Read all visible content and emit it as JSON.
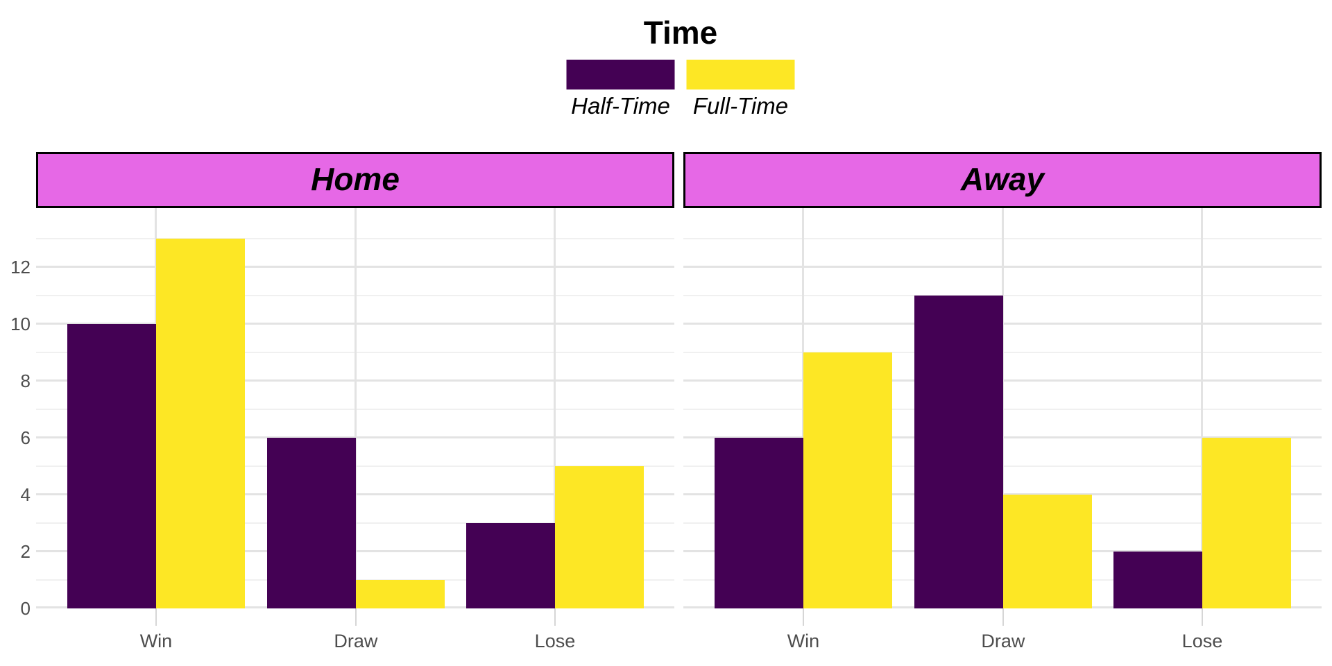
{
  "legend": {
    "title": "Time",
    "items": [
      {
        "label": "Half-Time",
        "color": "#440154"
      },
      {
        "label": "Full-Time",
        "color": "#FDE725"
      }
    ]
  },
  "chart_data": {
    "type": "bar",
    "layout": "two-facet dodged bar chart, legend top-center, shared y axis on left, grid on, no axis titles",
    "facets": [
      {
        "label": "Home",
        "categories": [
          "Win",
          "Draw",
          "Lose"
        ],
        "series": [
          {
            "name": "Half-Time",
            "values": [
              10,
              6,
              3
            ]
          },
          {
            "name": "Full-Time",
            "values": [
              13,
              1,
              5
            ]
          }
        ]
      },
      {
        "label": "Away",
        "categories": [
          "Win",
          "Draw",
          "Lose"
        ],
        "series": [
          {
            "name": "Half-Time",
            "values": [
              6,
              11,
              2
            ]
          },
          {
            "name": "Full-Time",
            "values": [
              9,
              4,
              6
            ]
          }
        ]
      }
    ],
    "y_ticks": [
      0,
      2,
      4,
      6,
      8,
      10,
      12
    ],
    "ylim": [
      0,
      14
    ],
    "gridline_values_max": 13,
    "colors": {
      "half_time": "#440154",
      "full_time": "#FDE725",
      "strip_fill": "#E668E6",
      "strip_border": "#000000",
      "grid_major": "#E3E3E3",
      "grid_minor": "#F0F0F0",
      "axis_text": "#4D4D4D",
      "tick_mark": "#D6D6D6",
      "background": "#FFFFFF"
    }
  }
}
